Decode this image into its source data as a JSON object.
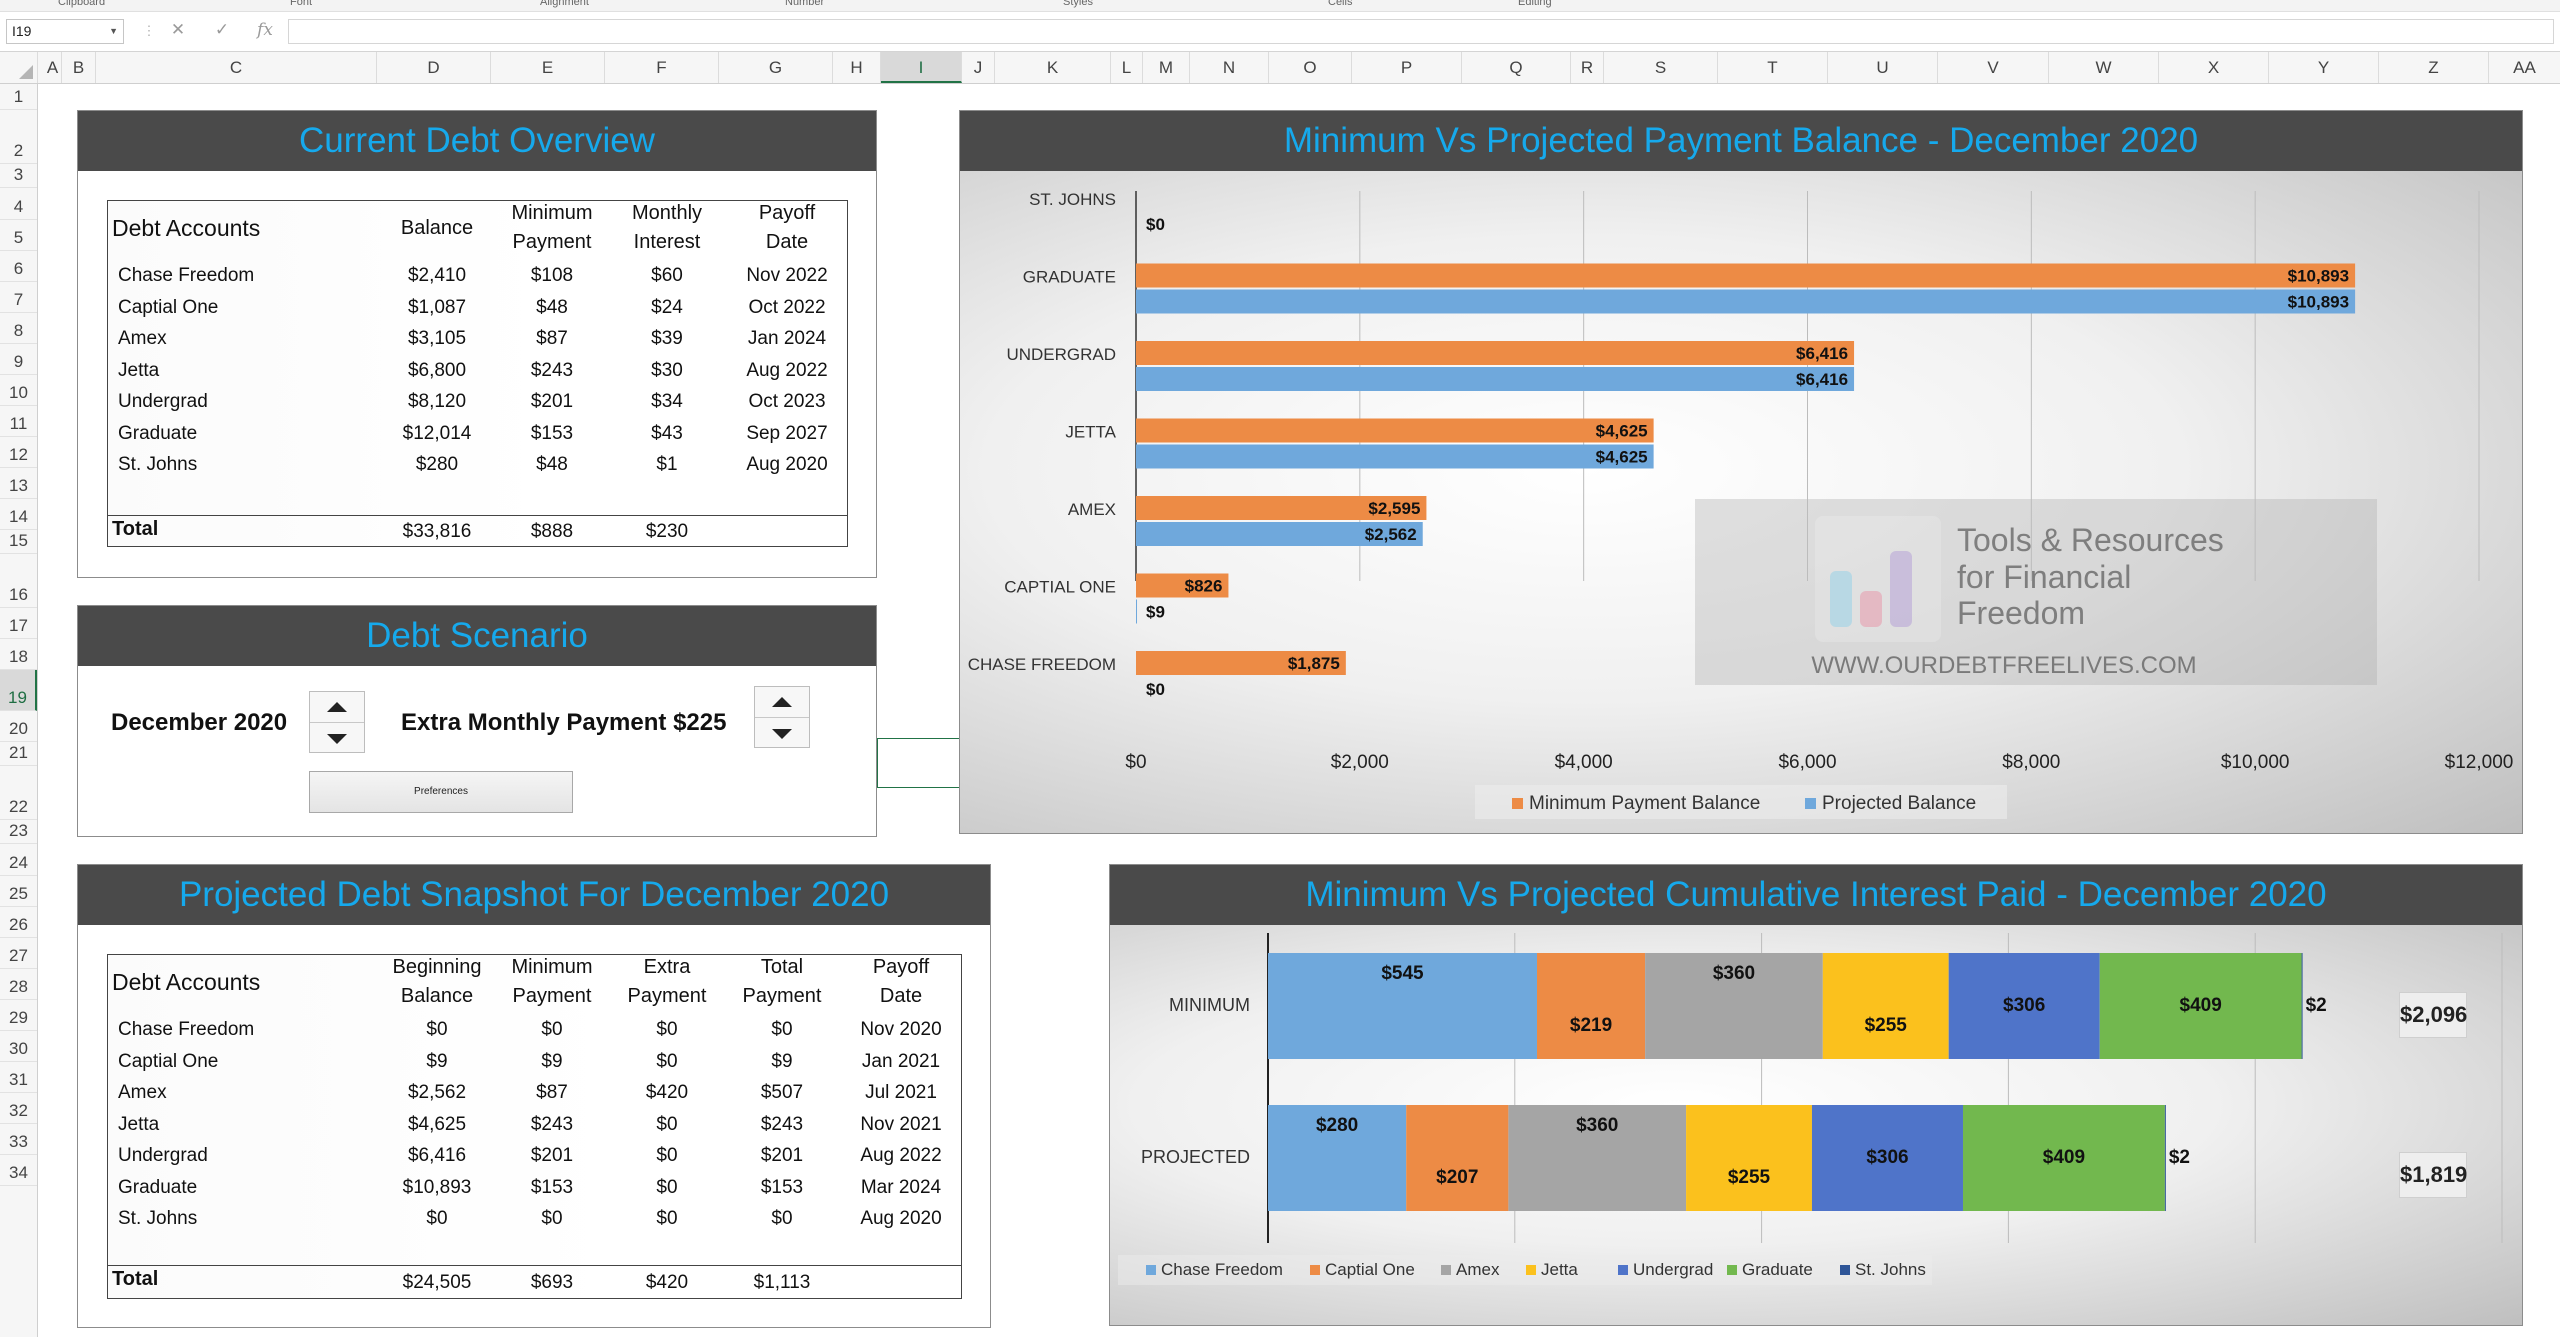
{
  "ribbon": {
    "groups": [
      "Clipboard",
      "Font",
      "Alignment",
      "Number",
      "Styles",
      "Cells",
      "Editing"
    ]
  },
  "formula_bar": {
    "name_box": "I19",
    "cancel_icon": "x-icon",
    "enter_icon": "check-icon",
    "function_label": "fx",
    "formula": ""
  },
  "columns": [
    "A",
    "B",
    "C",
    "D",
    "E",
    "F",
    "G",
    "H",
    "I",
    "J",
    "K",
    "L",
    "M",
    "N",
    "O",
    "P",
    "Q",
    "R",
    "S",
    "T",
    "U",
    "V",
    "W",
    "X",
    "Y",
    "Z",
    "AA"
  ],
  "rows": [
    "1",
    "2",
    "3",
    "4",
    "5",
    "6",
    "7",
    "8",
    "9",
    "10",
    "11",
    "12",
    "13",
    "14",
    "15",
    "16",
    "17",
    "18",
    "19",
    "20",
    "21",
    "22",
    "23",
    "24",
    "25",
    "26",
    "27",
    "28",
    "29",
    "30",
    "31",
    "32",
    "33",
    "34"
  ],
  "active_cell": {
    "column": "I",
    "row": "19"
  },
  "debt_overview": {
    "title": "Current Debt Overview",
    "headers": {
      "account": "Debt Accounts",
      "balance": "Balance",
      "minimum": [
        "Minimum",
        "Payment"
      ],
      "interest": [
        "Monthly",
        "Interest"
      ],
      "payoff": [
        "Payoff",
        "Date"
      ]
    },
    "rows": [
      {
        "name": "Chase Freedom",
        "balance": "$2,410",
        "minimum": "$108",
        "interest": "$60",
        "payoff": "Nov 2022"
      },
      {
        "name": "Captial One",
        "balance": "$1,087",
        "minimum": "$48",
        "interest": "$24",
        "payoff": "Oct 2022"
      },
      {
        "name": "Amex",
        "balance": "$3,105",
        "minimum": "$87",
        "interest": "$39",
        "payoff": "Jan 2024"
      },
      {
        "name": "Jetta",
        "balance": "$6,800",
        "minimum": "$243",
        "interest": "$30",
        "payoff": "Aug 2022"
      },
      {
        "name": "Undergrad",
        "balance": "$8,120",
        "minimum": "$201",
        "interest": "$34",
        "payoff": "Oct 2023"
      },
      {
        "name": "Graduate",
        "balance": "$12,014",
        "minimum": "$153",
        "interest": "$43",
        "payoff": "Sep 2027"
      },
      {
        "name": "St. Johns",
        "balance": "$280",
        "minimum": "$48",
        "interest": "$1",
        "payoff": "Aug 2020"
      }
    ],
    "total": {
      "label": "Total",
      "balance": "$33,816",
      "minimum": "$888",
      "interest": "$230"
    }
  },
  "debt_scenario": {
    "title": "Debt Scenario",
    "month_label": "December 2020",
    "extra_label": "Extra Monthly Payment $225",
    "preferences_button": "Preferences"
  },
  "snapshot": {
    "title": "Projected Debt Snapshot For December 2020",
    "headers": {
      "account": "Debt Accounts",
      "beginning": [
        "Beginning",
        "Balance"
      ],
      "minimum": [
        "Minimum",
        "Payment"
      ],
      "extra": [
        "Extra",
        "Payment"
      ],
      "total": [
        "Total",
        "Payment"
      ],
      "payoff": [
        "Payoff",
        "Date"
      ]
    },
    "rows": [
      {
        "name": "Chase Freedom",
        "beginning": "$0",
        "minimum": "$0",
        "extra": "$0",
        "total": "$0",
        "payoff": "Nov 2020"
      },
      {
        "name": "Captial One",
        "beginning": "$9",
        "minimum": "$9",
        "extra": "$0",
        "total": "$9",
        "payoff": "Jan 2021"
      },
      {
        "name": "Amex",
        "beginning": "$2,562",
        "minimum": "$87",
        "extra": "$420",
        "total": "$507",
        "payoff": "Jul 2021"
      },
      {
        "name": "Jetta",
        "beginning": "$4,625",
        "minimum": "$243",
        "extra": "$0",
        "total": "$243",
        "payoff": "Nov 2021"
      },
      {
        "name": "Undergrad",
        "beginning": "$6,416",
        "minimum": "$201",
        "extra": "$0",
        "total": "$201",
        "payoff": "Aug 2022"
      },
      {
        "name": "Graduate",
        "beginning": "$10,893",
        "minimum": "$153",
        "extra": "$0",
        "total": "$153",
        "payoff": "Mar 2024"
      },
      {
        "name": "St. Johns",
        "beginning": "$0",
        "minimum": "$0",
        "extra": "$0",
        "total": "$0",
        "payoff": "Aug 2020"
      }
    ],
    "total": {
      "label": "Total",
      "beginning": "$24,505",
      "minimum": "$693",
      "extra": "$420",
      "total": "$1,113"
    }
  },
  "balance_chart_title": "Minimum Vs Projected Payment Balance - December 2020",
  "interest_chart_title": "Minimum Vs Projected Cumulative Interest Paid - December 2020",
  "watermark": {
    "line1": "Tools & Resources",
    "line2": "for Financial",
    "line3": "Freedom",
    "url": "WWW.OURDEBTFREELIVES.COM"
  },
  "colors": {
    "title_bar": "#4a4a4a",
    "title_text": "#16a9ec",
    "orange": "#ed8b45",
    "blue": "#6fa8dc",
    "gray": "#a5a5a5",
    "gold": "#fbc11d",
    "royal": "#4f74c9",
    "green": "#72b84e",
    "navy": "#2e5597"
  },
  "chart_data": [
    {
      "type": "bar",
      "orientation": "horizontal",
      "title": "Minimum Vs Projected Payment Balance - December 2020",
      "categories": [
        "CHASE FREEDOM",
        "CAPTIAL ONE",
        "AMEX",
        "JETTA",
        "UNDERGRAD",
        "GRADUATE",
        "ST. JOHNS"
      ],
      "series": [
        {
          "name": "Minimum Payment Balance",
          "color": "#ed8b45",
          "values": [
            1875,
            826,
            2595,
            4625,
            6416,
            10893,
            0
          ],
          "labels": [
            "$1,875",
            "$826",
            "$2,595",
            "$4,625",
            "$6,416",
            "$10,893",
            ""
          ]
        },
        {
          "name": "Projected Balance",
          "color": "#6fa8dc",
          "values": [
            0,
            9,
            2562,
            4625,
            6416,
            10893,
            0
          ],
          "labels": [
            "$0",
            "$9",
            "$2,562",
            "$4,625",
            "$6,416",
            "$10,893",
            "$0"
          ]
        }
      ],
      "xlim": [
        0,
        12000
      ],
      "ticks": [
        "$0",
        "$2,000",
        "$4,000",
        "$6,000",
        "$8,000",
        "$10,000",
        "$12,000"
      ],
      "grid": true,
      "legend": "bottom"
    },
    {
      "type": "bar",
      "orientation": "horizontal",
      "stacked": true,
      "title": "Minimum Vs Projected Cumulative Interest Paid - December 2020",
      "categories": [
        "MINIMUM",
        "PROJECTED"
      ],
      "series": [
        {
          "name": "Chase Freedom",
          "color": "#6fa8dc",
          "values": [
            545,
            280
          ]
        },
        {
          "name": "Captial One",
          "color": "#ed8b45",
          "values": [
            219,
            207
          ]
        },
        {
          "name": "Amex",
          "color": "#a5a5a5",
          "values": [
            360,
            360
          ]
        },
        {
          "name": "Jetta",
          "color": "#fbc11d",
          "values": [
            255,
            255
          ]
        },
        {
          "name": "Undergrad",
          "color": "#4f74c9",
          "values": [
            306,
            306
          ]
        },
        {
          "name": "Graduate",
          "color": "#72b84e",
          "values": [
            409,
            409
          ]
        },
        {
          "name": "St. Johns",
          "color": "#2e5597",
          "values": [
            2,
            2
          ]
        }
      ],
      "totals": [
        "$2,096",
        "$1,819"
      ],
      "xlim": [
        0,
        2500
      ],
      "grid": true,
      "legend": "bottom"
    }
  ]
}
